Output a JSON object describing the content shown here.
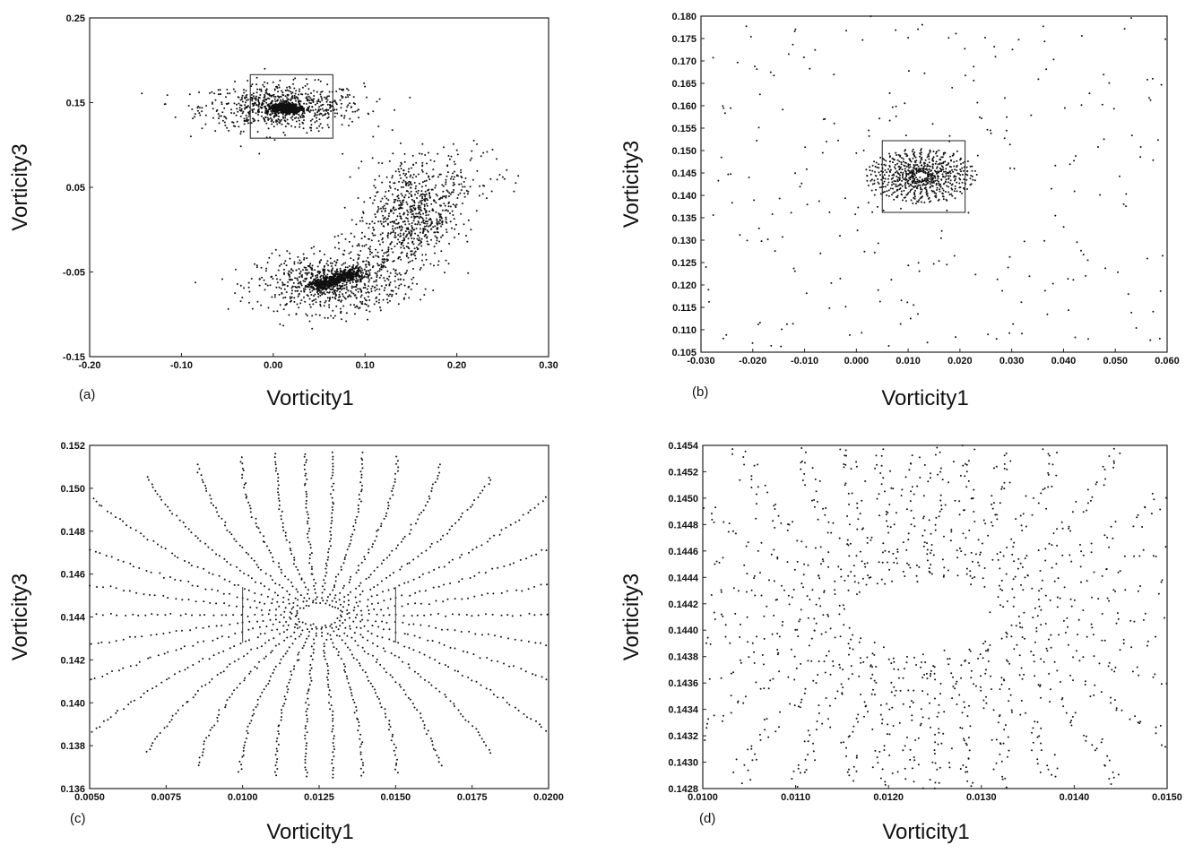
{
  "chart_data": [
    {
      "type": "scatter",
      "panel_label": "(a)",
      "xlabel": "Vorticity1",
      "ylabel": "Vorticity3",
      "xlim": [
        -0.2,
        0.3
      ],
      "ylim": [
        -0.15,
        0.25
      ],
      "xticks": [
        "-0.20",
        "-0.10",
        "0.00",
        "0.10",
        "0.20",
        "0.30"
      ],
      "yticks": [
        "-0.15",
        "-0.05",
        "0.05",
        "0.15",
        "0.25"
      ],
      "zoom_box": {
        "x": [
          -0.025,
          0.065
        ],
        "y": [
          0.108,
          0.183
        ]
      },
      "clusters": [
        {
          "center": [
            0.01,
            0.145
          ],
          "spread": [
            0.08,
            0.025
          ],
          "count": 700
        },
        {
          "center": [
            0.06,
            -0.065
          ],
          "spread": [
            0.07,
            0.03
          ],
          "count": 700
        },
        {
          "center": [
            0.15,
            0.02
          ],
          "spread": [
            0.04,
            0.06
          ],
          "count": 500
        }
      ]
    },
    {
      "type": "scatter",
      "panel_label": "(b)",
      "xlabel": "Vorticity1",
      "ylabel": "Vorticity3",
      "xlim": [
        -0.03,
        0.06
      ],
      "ylim": [
        0.105,
        0.18
      ],
      "xticks": [
        "-0.030",
        "-0.020",
        "-0.010",
        "0.000",
        "0.010",
        "0.020",
        "0.030",
        "0.040",
        "0.050",
        "0.060"
      ],
      "yticks": [
        "0.105",
        "0.110",
        "0.115",
        "0.120",
        "0.125",
        "0.130",
        "0.135",
        "0.140",
        "0.145",
        "0.150",
        "0.155",
        "0.160",
        "0.165",
        "0.170",
        "0.175",
        "0.180"
      ],
      "zoom_box": {
        "x": [
          0.005,
          0.021
        ],
        "y": [
          0.1362,
          0.1522
        ]
      },
      "center": [
        0.0125,
        0.1444
      ]
    },
    {
      "type": "scatter",
      "panel_label": "(c)",
      "xlabel": "Vorticity1",
      "ylabel": "Vorticity3",
      "xlim": [
        0.005,
        0.02
      ],
      "ylim": [
        0.136,
        0.152
      ],
      "xticks": [
        "0.0050",
        "0.0075",
        "0.0100",
        "0.0125",
        "0.0150",
        "0.0175",
        "0.0200"
      ],
      "yticks": [
        "0.136",
        "0.138",
        "0.140",
        "0.142",
        "0.144",
        "0.146",
        "0.148",
        "0.150",
        "0.152"
      ],
      "zoom_lines": {
        "x": [
          0.01,
          0.015
        ],
        "y": [
          0.1428,
          0.1454
        ]
      },
      "center": [
        0.0125,
        0.1441
      ]
    },
    {
      "type": "scatter",
      "panel_label": "(d)",
      "xlabel": "Vorticity1",
      "ylabel": "Vorticity3",
      "xlim": [
        0.01,
        0.015
      ],
      "ylim": [
        0.1428,
        0.1454
      ],
      "xticks": [
        "0.0100",
        "0.0110",
        "0.0120",
        "0.0130",
        "0.0140",
        "0.0150"
      ],
      "yticks": [
        "0.1428",
        "0.1430",
        "0.1432",
        "0.1434",
        "0.1436",
        "0.1438",
        "0.1440",
        "0.1442",
        "0.1444",
        "0.1446",
        "0.1448",
        "0.1450",
        "0.1452",
        "0.1454"
      ],
      "center": [
        0.0124,
        0.1441
      ]
    }
  ]
}
